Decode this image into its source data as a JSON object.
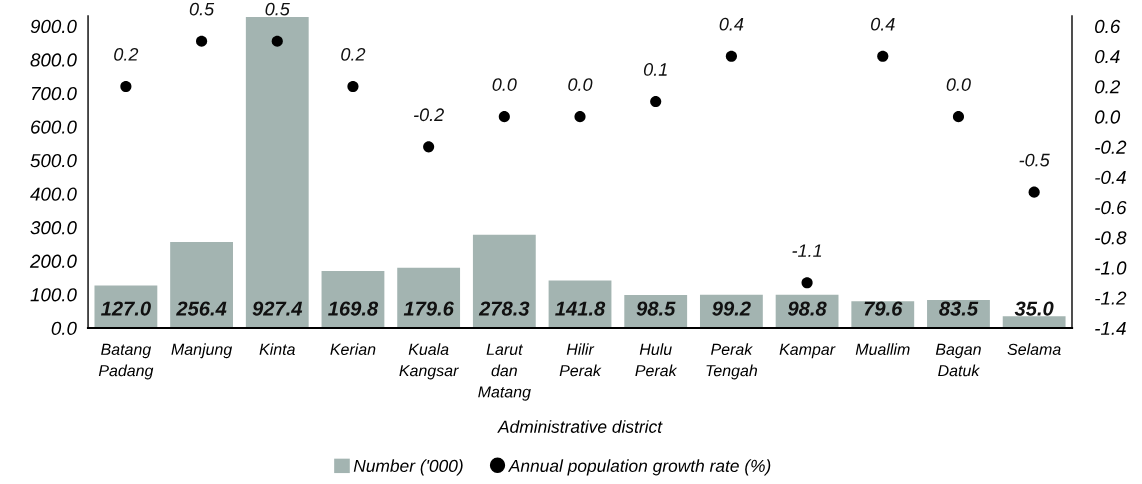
{
  "chart_data": {
    "type": "bar",
    "categories": [
      "Batang Padang",
      "Manjung",
      "Kinta",
      "Kerian",
      "Kuala Kangsar",
      "Larut dan Matang",
      "Hilir Perak",
      "Hulu Perak",
      "Perak Tengah",
      "Kampar",
      "Muallim",
      "Bagan Datuk",
      "Selama"
    ],
    "series": [
      {
        "name": "Number ('000)",
        "color": "#a3b4b1",
        "values": [
          127.0,
          256.4,
          927.4,
          169.8,
          179.6,
          278.3,
          141.8,
          98.5,
          99.2,
          98.8,
          79.6,
          83.5,
          35.0
        ],
        "value_labels": [
          "127.0",
          "256.4",
          "927.4",
          "169.8",
          "179.6",
          "278.3",
          "141.8",
          "98.5",
          "99.2",
          "98.8",
          "79.6",
          "83.5",
          "35.0"
        ]
      },
      {
        "name": "Annual population growth rate (%)",
        "type": "scatter",
        "axis": "y2",
        "color": "#000000",
        "values": [
          0.2,
          0.5,
          0.5,
          0.2,
          -0.2,
          0.0,
          0.0,
          0.1,
          0.4,
          -1.1,
          0.4,
          0.0,
          -0.5
        ],
        "value_labels": [
          "0.2",
          "0.5",
          "0.5",
          "0.2",
          "-0.2",
          "0.0",
          "0.0",
          "0.1",
          "0.4",
          "-1.1",
          "0.4",
          "0.0",
          "-0.5"
        ]
      }
    ],
    "xlabel": "Administrative district",
    "ylim": [
      0,
      930
    ],
    "yticks": [
      {
        "value": 0,
        "label": "0.0"
      },
      {
        "value": 100,
        "label": "100.0"
      },
      {
        "value": 200,
        "label": "200.0"
      },
      {
        "value": 300,
        "label": "300.0"
      },
      {
        "value": 400,
        "label": "400.0"
      },
      {
        "value": 500,
        "label": "500.0"
      },
      {
        "value": 600,
        "label": "600.0"
      },
      {
        "value": 700,
        "label": "700.0"
      },
      {
        "value": 800,
        "label": "800.0"
      },
      {
        "value": 900,
        "label": "900.0"
      }
    ],
    "y2lim": [
      -1.4,
      0.6667
    ],
    "y2ticks": [
      {
        "value": -1.4,
        "label": "-1.4"
      },
      {
        "value": -1.2,
        "label": "-1.2"
      },
      {
        "value": -1.0,
        "label": "-1.0"
      },
      {
        "value": -0.8,
        "label": "-0.8"
      },
      {
        "value": -0.6,
        "label": "-0.6"
      },
      {
        "value": -0.4,
        "label": "-0.4"
      },
      {
        "value": -0.2,
        "label": "-0.2"
      },
      {
        "value": 0,
        "label": "0.0"
      },
      {
        "value": 0.2,
        "label": "0.2"
      },
      {
        "value": 0.4,
        "label": "0.4"
      },
      {
        "value": 0.6,
        "label": "0.6"
      }
    ],
    "marker": "circle",
    "grid": false,
    "legend": "bottom"
  }
}
